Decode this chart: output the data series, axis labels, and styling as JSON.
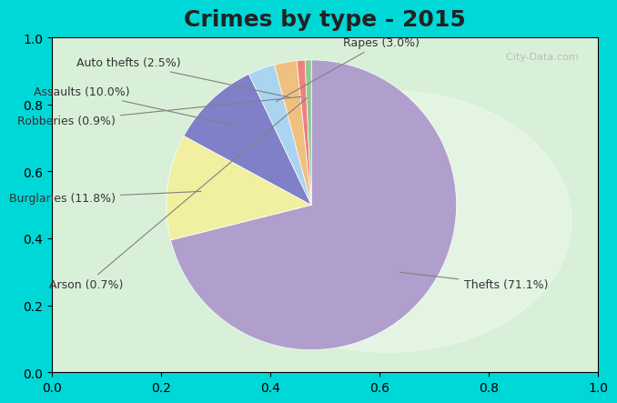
{
  "title": "Crimes by type - 2015",
  "title_fontsize": 18,
  "title_fontweight": "bold",
  "slices": [
    {
      "label": "Thefts (71.1%)",
      "value": 71.1,
      "color": "#b09fcc"
    },
    {
      "label": "Burglaries (11.8%)",
      "value": 11.8,
      "color": "#f0f0a0"
    },
    {
      "label": "Assaults (10.0%)",
      "value": 10.0,
      "color": "#8080c8"
    },
    {
      "label": "Rapes (3.0%)",
      "value": 3.0,
      "color": "#aad4f0"
    },
    {
      "label": "Auto thefts (2.5%)",
      "value": 2.5,
      "color": "#f0c080"
    },
    {
      "label": "Robberies (0.9%)",
      "value": 0.9,
      "color": "#f08080"
    },
    {
      "label": "Arson (0.7%)",
      "value": 0.7,
      "color": "#90c890"
    }
  ],
  "background_top": "#00d8d8",
  "background_chart": "#d8f0d8",
  "label_fontsize": 9,
  "startangle": 90,
  "fig_width": 6.0,
  "fig_height": 4.0
}
